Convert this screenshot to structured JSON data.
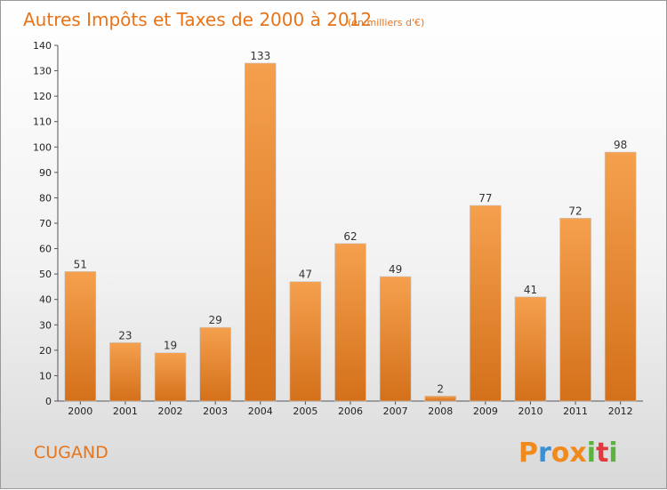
{
  "chart_data": {
    "type": "bar",
    "title": "Autres Impôts et Taxes de 2000 à 2012",
    "subtitle": "(en milliers d'€)",
    "categories": [
      "2000",
      "2001",
      "2002",
      "2003",
      "2004",
      "2005",
      "2006",
      "2007",
      "2008",
      "2009",
      "2010",
      "2011",
      "2012"
    ],
    "values": [
      51,
      23,
      19,
      29,
      133,
      47,
      62,
      49,
      2,
      77,
      41,
      72,
      98
    ],
    "data_labels": [
      "51",
      "23",
      "19",
      "29",
      "133",
      "47",
      "62",
      "49",
      "2",
      "77",
      "41",
      "72",
      "98"
    ],
    "ylim": [
      0,
      140
    ],
    "yticks": [
      0,
      10,
      20,
      30,
      40,
      50,
      60,
      70,
      80,
      90,
      100,
      110,
      120,
      130,
      140
    ],
    "ytick_labels": [
      "0",
      "10",
      "20",
      "30",
      "40",
      "50",
      "60",
      "70",
      "80",
      "90",
      "100",
      "110",
      "120",
      "130",
      "140"
    ],
    "grid": false,
    "bar_color_top": "#f5a04e",
    "bar_color_bottom": "#d4701a",
    "xlabel": "",
    "ylabel": ""
  },
  "footer": {
    "commune": "CUGAND",
    "brand_letters": [
      "P",
      "r",
      "o",
      "x",
      "i",
      "t",
      "i"
    ],
    "brand_colors": [
      "#f08a1c",
      "#3a8fd4",
      "#f08a1c",
      "#f08a1c",
      "#5ab43c",
      "#e23a3a",
      "#5ab43c"
    ]
  }
}
